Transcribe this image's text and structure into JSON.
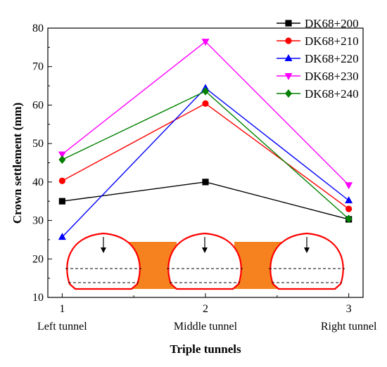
{
  "chart_data": {
    "type": "line",
    "xlabel": "Triple tunnels",
    "ylabel": "Crown settlement (mm)",
    "x": [
      1,
      2,
      3
    ],
    "x_tick_labels": [
      "1",
      "2",
      "3"
    ],
    "x_category_labels": [
      "Left tunnel",
      "Middle tunnel",
      "Right tunnel"
    ],
    "xlim": [
      0.9,
      3.1
    ],
    "ylim": [
      10,
      80
    ],
    "y_ticks": [
      10,
      20,
      30,
      40,
      50,
      60,
      70,
      80
    ],
    "grid": false,
    "legend_position": "top-right",
    "series": [
      {
        "name": "DK68+200",
        "color": "#000000",
        "marker": "square",
        "values": [
          35.0,
          40.0,
          30.3
        ]
      },
      {
        "name": "DK68+210",
        "color": "#ff0000",
        "marker": "circle",
        "values": [
          40.3,
          60.4,
          33.0
        ]
      },
      {
        "name": "DK68+220",
        "color": "#0000ff",
        "marker": "triangle-up",
        "values": [
          25.7,
          64.4,
          35.2
        ]
      },
      {
        "name": "DK68+230",
        "color": "#ff00ff",
        "marker": "triangle-down",
        "values": [
          47.2,
          76.5,
          39.2
        ]
      },
      {
        "name": "DK68+240",
        "color": "#008000",
        "marker": "diamond",
        "values": [
          45.8,
          63.6,
          30.4
        ]
      }
    ],
    "inset_colors": {
      "soil": "#f5821f",
      "lining": "#ff0000",
      "dashed": "#000000"
    }
  }
}
